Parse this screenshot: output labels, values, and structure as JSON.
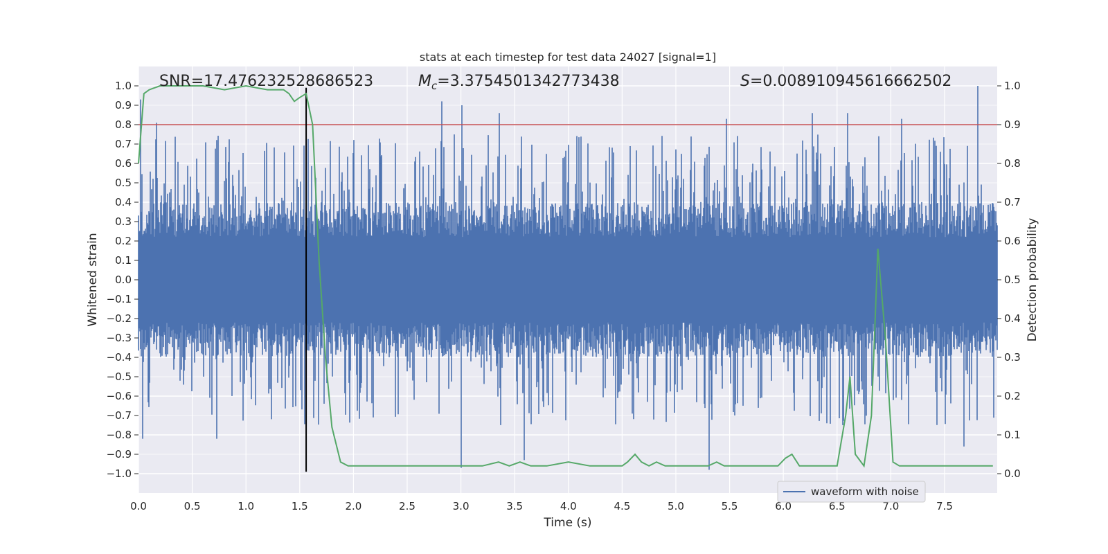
{
  "chart_data": {
    "type": "line",
    "title": "stats at each timestep for test data 24027 [signal=1]",
    "xlabel": "Time (s)",
    "ylabel_left": "Whitened strain",
    "ylabel_right": "Detection probability",
    "xlim": [
      0.0,
      7.99
    ],
    "ylim_left": [
      -1.1,
      1.1
    ],
    "ylim_right": [
      -0.05,
      1.05
    ],
    "x_ticks": [
      0.0,
      0.5,
      1.0,
      1.5,
      2.0,
      2.5,
      3.0,
      3.5,
      4.0,
      4.5,
      5.0,
      5.5,
      6.0,
      6.5,
      7.0,
      7.5
    ],
    "x_tick_labels": [
      "0.0",
      "0.5",
      "1.0",
      "1.5",
      "2.0",
      "2.5",
      "3.0",
      "3.5",
      "4.0",
      "4.5",
      "5.0",
      "5.5",
      "6.0",
      "6.5",
      "7.0",
      "7.5"
    ],
    "y_left_ticks": [
      -1.0,
      -0.9,
      -0.8,
      -0.7,
      -0.6,
      -0.5,
      -0.4,
      -0.3,
      -0.2,
      -0.1,
      0.0,
      0.1,
      0.2,
      0.3,
      0.4,
      0.5,
      0.6,
      0.7,
      0.8,
      0.9,
      1.0
    ],
    "y_left_tick_labels": [
      "−1.0",
      "−0.9",
      "−0.8",
      "−0.7",
      "−0.6",
      "−0.5",
      "−0.4",
      "−0.3",
      "−0.2",
      "−0.1",
      "0.0",
      "0.1",
      "0.2",
      "0.3",
      "0.4",
      "0.5",
      "0.6",
      "0.7",
      "0.8",
      "0.9",
      "1.0"
    ],
    "y_right_ticks": [
      0.0,
      0.1,
      0.2,
      0.3,
      0.4,
      0.5,
      0.6,
      0.7,
      0.8,
      0.9,
      1.0
    ],
    "y_right_tick_labels": [
      "0.0",
      "0.1",
      "0.2",
      "0.3",
      "0.4",
      "0.5",
      "0.6",
      "0.7",
      "0.8",
      "0.9",
      "1.0"
    ],
    "annotations": {
      "snr": "SNR=17.476232528686523",
      "mc_symbol": "M",
      "mc_sub": "c",
      "mc_value": "=3.3754501342773438",
      "s_symbol": "S",
      "s_value": "=0.008910945616662502"
    },
    "threshold_line": {
      "axis": "right",
      "y": 0.9,
      "color": "#c44e52"
    },
    "vertical_marker": {
      "x": 1.56,
      "y_range": [
        -0.99,
        0.99
      ],
      "color": "#000000"
    },
    "legend": {
      "entries": [
        "waveform with noise"
      ],
      "location": "lower-right"
    },
    "waveform": {
      "name": "waveform with noise",
      "color": "#4c72b0",
      "envelope": "dense noise within ±0.4 with spikes up to ±1.0",
      "spikes": [
        {
          "x": 0.02,
          "y": 0.93
        },
        {
          "x": 0.04,
          "y": -0.82
        },
        {
          "x": 0.17,
          "y": 0.81
        },
        {
          "x": 0.73,
          "y": -0.82
        },
        {
          "x": 2.82,
          "y": 0.92
        },
        {
          "x": 3.01,
          "y": 0.9
        },
        {
          "x": 3.0,
          "y": -0.97
        },
        {
          "x": 3.36,
          "y": 0.86
        },
        {
          "x": 3.59,
          "y": -0.93
        },
        {
          "x": 5.31,
          "y": -0.98
        },
        {
          "x": 5.47,
          "y": 0.83
        },
        {
          "x": 6.27,
          "y": 0.86
        },
        {
          "x": 6.6,
          "y": 0.86
        },
        {
          "x": 7.1,
          "y": 0.83
        },
        {
          "x": 7.81,
          "y": 1.0
        },
        {
          "x": 7.68,
          "y": -0.86
        }
      ]
    },
    "probability": {
      "name": "detection probability",
      "color": "#55a868",
      "x": [
        0.0,
        0.05,
        0.1,
        0.2,
        0.4,
        0.6,
        0.8,
        1.0,
        1.2,
        1.35,
        1.4,
        1.45,
        1.5,
        1.56,
        1.62,
        1.68,
        1.74,
        1.8,
        1.88,
        1.95,
        2.1,
        2.3,
        2.6,
        3.0,
        3.2,
        3.35,
        3.45,
        3.55,
        3.65,
        3.8,
        4.0,
        4.2,
        4.4,
        4.5,
        4.55,
        4.62,
        4.68,
        4.75,
        4.82,
        4.9,
        5.0,
        5.2,
        5.3,
        5.38,
        5.45,
        5.55,
        5.8,
        5.95,
        6.02,
        6.08,
        6.15,
        6.25,
        6.32,
        6.4,
        6.5,
        6.58,
        6.62,
        6.67,
        6.75,
        6.82,
        6.88,
        6.95,
        7.02,
        7.08,
        7.15,
        7.3,
        7.5,
        7.7,
        7.95
      ],
      "y": [
        0.8,
        0.98,
        0.99,
        1.0,
        1.0,
        1.0,
        0.99,
        1.0,
        0.99,
        0.99,
        0.98,
        0.96,
        0.97,
        0.98,
        0.9,
        0.55,
        0.3,
        0.12,
        0.03,
        0.02,
        0.02,
        0.02,
        0.02,
        0.02,
        0.02,
        0.03,
        0.02,
        0.03,
        0.02,
        0.02,
        0.03,
        0.02,
        0.02,
        0.02,
        0.03,
        0.05,
        0.03,
        0.02,
        0.03,
        0.02,
        0.02,
        0.02,
        0.02,
        0.03,
        0.02,
        0.02,
        0.02,
        0.02,
        0.04,
        0.05,
        0.02,
        0.02,
        0.02,
        0.02,
        0.02,
        0.15,
        0.25,
        0.05,
        0.02,
        0.15,
        0.58,
        0.35,
        0.03,
        0.02,
        0.02,
        0.02,
        0.02,
        0.02,
        0.02
      ]
    }
  }
}
